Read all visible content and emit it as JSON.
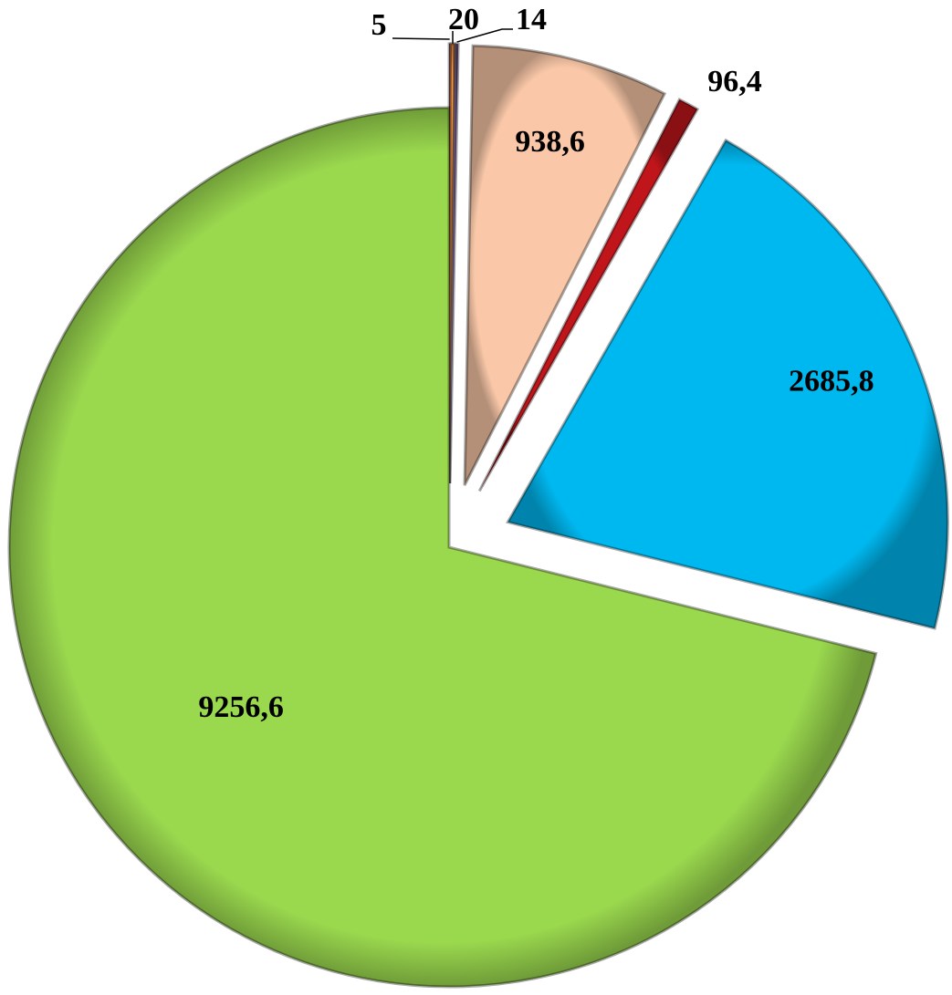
{
  "chart_data": {
    "type": "pie",
    "values": [
      5,
      20,
      14,
      938.6,
      96.4,
      2685.8,
      9256.6
    ],
    "value_labels": [
      "5",
      "20",
      "14",
      "938,6",
      "96,4",
      "2685,8",
      "9256,6"
    ],
    "colors": [
      "#c0504d",
      "#f79646",
      "#8064a2",
      "#fac8a8",
      "#c0161b",
      "#00b8f0",
      "#9ad84e"
    ]
  }
}
